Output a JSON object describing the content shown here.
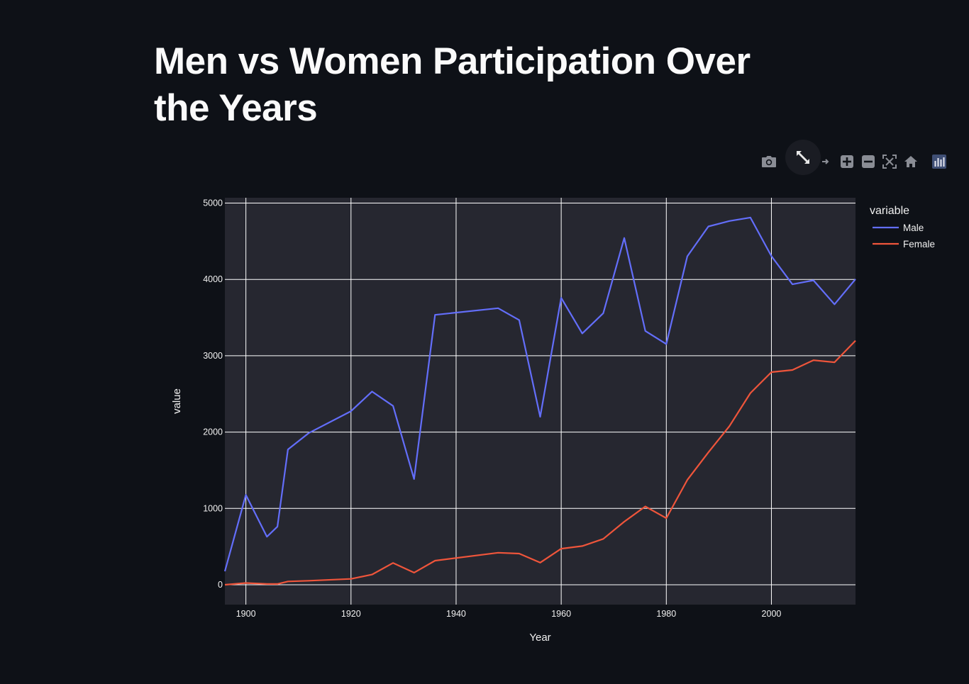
{
  "page": {
    "title": "Men vs Women Participation Over the Years"
  },
  "modebar": {
    "icons": [
      "camera-icon",
      "pan-icon",
      "zoom-in-icon",
      "zoom-out-icon",
      "autoscale-icon",
      "home-icon",
      "plotly-logo-icon"
    ],
    "fullscreen_icon": "expand-arrows-icon"
  },
  "colors": {
    "background": "#0e1117",
    "plot_background": "#262730",
    "grid": "#ffffff",
    "male": "#636efa",
    "female": "#ef553b"
  },
  "chart_data": {
    "type": "line",
    "title": "",
    "xlabel": "Year",
    "ylabel": "value",
    "xlim": [
      1896,
      2016
    ],
    "ylim": [
      -260,
      5070
    ],
    "xticks": [
      1900,
      1920,
      1940,
      1960,
      1980,
      2000
    ],
    "yticks": [
      0,
      1000,
      2000,
      3000,
      4000,
      5000
    ],
    "grid": true,
    "legend": {
      "title": "variable",
      "position": "top-right, outside plot"
    },
    "x": [
      1896,
      1900,
      1904,
      1906,
      1908,
      1912,
      1920,
      1924,
      1928,
      1932,
      1936,
      1948,
      1952,
      1956,
      1960,
      1964,
      1968,
      1972,
      1976,
      1980,
      1984,
      1988,
      1992,
      1996,
      2000,
      2004,
      2008,
      2012,
      2016
    ],
    "series": [
      {
        "name": "Male",
        "color": "#636efa",
        "values": [
          176,
          1177,
          630,
          762,
          1773,
          1989,
          2274,
          2531,
          2343,
          1385,
          3536,
          3623,
          3467,
          2201,
          3759,
          3293,
          3557,
          4543,
          3325,
          3153,
          4303,
          4694,
          4765,
          4811,
          4305,
          3936,
          3988,
          3674,
          4004
        ]
      },
      {
        "name": "Female",
        "color": "#ef553b",
        "values": [
          0,
          23,
          10,
          10,
          44,
          53,
          77,
          134,
          286,
          159,
          316,
          420,
          409,
          290,
          473,
          507,
          601,
          826,
          1026,
          872,
          1373,
          1735,
          2077,
          2511,
          2786,
          2814,
          2942,
          2915,
          3198
        ]
      }
    ]
  }
}
